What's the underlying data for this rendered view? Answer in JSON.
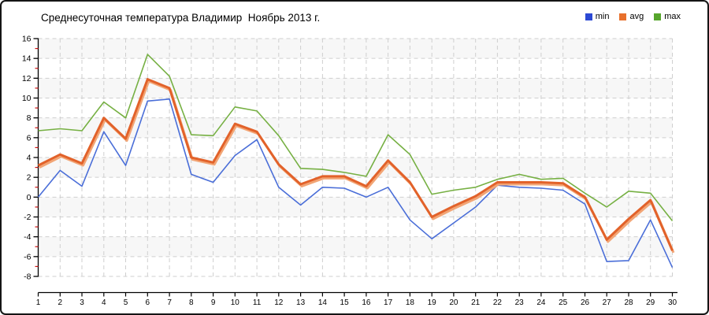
{
  "chart_data": {
    "type": "line",
    "title": "Среднесуточная температура Владимир  Ноябрь 2013 г.",
    "xlabel": "",
    "ylabel": "",
    "x": [
      1,
      2,
      3,
      4,
      5,
      6,
      7,
      8,
      9,
      10,
      11,
      12,
      13,
      14,
      15,
      16,
      17,
      18,
      19,
      20,
      21,
      22,
      23,
      24,
      25,
      26,
      27,
      28,
      29,
      30
    ],
    "series": [
      {
        "name": "min",
        "color": "#4a6ed8",
        "swatch_color": "#2c49d4",
        "values": [
          0.0,
          2.7,
          1.1,
          6.6,
          3.2,
          9.7,
          9.9,
          2.3,
          1.5,
          4.2,
          5.8,
          1.0,
          -0.8,
          1.0,
          0.9,
          0.0,
          1.0,
          -2.3,
          -4.2,
          -2.6,
          -1.0,
          1.2,
          1.0,
          0.9,
          0.7,
          -0.7,
          -6.5,
          -6.4,
          -2.3,
          -7.1
        ]
      },
      {
        "name": "avg",
        "color": "#e2622a",
        "swatch_color": "#e8702c",
        "shadow_color": "#f2a575",
        "values": [
          3.2,
          4.3,
          3.4,
          8.0,
          5.9,
          11.9,
          11.0,
          4.0,
          3.5,
          7.4,
          6.6,
          3.3,
          1.3,
          2.1,
          2.1,
          1.1,
          3.7,
          1.5,
          -2.0,
          -0.9,
          0.1,
          1.5,
          1.5,
          1.5,
          1.4,
          0.0,
          -4.3,
          -2.2,
          -0.3,
          -5.4
        ]
      },
      {
        "name": "max",
        "color": "#76b043",
        "swatch_color": "#56a52c",
        "values": [
          6.7,
          6.9,
          6.7,
          9.6,
          8.0,
          14.4,
          12.2,
          6.3,
          6.2,
          9.1,
          8.7,
          6.2,
          2.9,
          2.8,
          2.5,
          2.1,
          6.3,
          4.3,
          0.3,
          0.7,
          1.0,
          1.8,
          2.3,
          1.8,
          1.9,
          0.4,
          -1.0,
          0.6,
          0.4,
          -2.4
        ]
      }
    ],
    "ylim": [
      -8,
      16
    ],
    "ytick_step": 2,
    "y_minor_tick_step": 1,
    "grid": true,
    "grid_style": "dashed",
    "legend_position": "top-right",
    "plot_band_colors": [
      "#f7f7f7",
      "#ffffff"
    ],
    "grid_color": "#cfcfcf",
    "axis_color": "#000000",
    "minor_tick_color": "#cc1111"
  }
}
